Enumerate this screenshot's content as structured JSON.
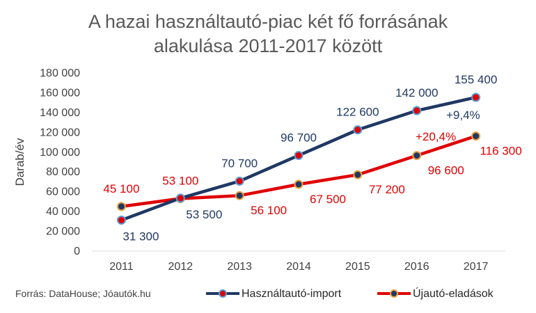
{
  "source_note": "Forrás: DataHouse; Jóautók.hu",
  "colors": {
    "import": "#1F3864",
    "new": "#E00000",
    "import_marker": "#E00000",
    "new_marker": "#1F3864",
    "marker_edge": "#E8A33D"
  },
  "chart_data": {
    "type": "line",
    "title": "A hazai használtautó-piac két fő forrásának alakulása 2011-2017 között",
    "title_lines": [
      "A hazai használtautó-piac két fő forrásának",
      "alakulása 2011-2017 között"
    ],
    "xlabel": "",
    "ylabel": "Darab/év",
    "categories": [
      "2011",
      "2012",
      "2013",
      "2014",
      "2015",
      "2016",
      "2017"
    ],
    "ylim": [
      0,
      180000
    ],
    "yticks": [
      "0",
      "20 000",
      "40 000",
      "60 000",
      "80 000",
      "100 000",
      "120 000",
      "140 000",
      "160 000",
      "180 000"
    ],
    "grid": false,
    "legend_position": "bottom",
    "series": [
      {
        "name": "Használtautó-import",
        "values": [
          31300,
          53500,
          70700,
          96700,
          122600,
          142000,
          155400
        ],
        "labels": [
          "31 300",
          "53 500",
          "70 700",
          "96 700",
          "122 600",
          "142 000",
          "155 400"
        ]
      },
      {
        "name": "Újautó-eladások",
        "values": [
          45100,
          53100,
          56100,
          67500,
          77200,
          96600,
          116300
        ],
        "labels": [
          "45 100",
          "53 100",
          "56 100",
          "67 500",
          "77 200",
          "96 600",
          "116 300"
        ]
      }
    ],
    "annotations": [
      {
        "text": "+9,4%",
        "series": "Használtautó-import"
      },
      {
        "text": "+20,4%",
        "series": "Újautó-eladások"
      }
    ]
  }
}
